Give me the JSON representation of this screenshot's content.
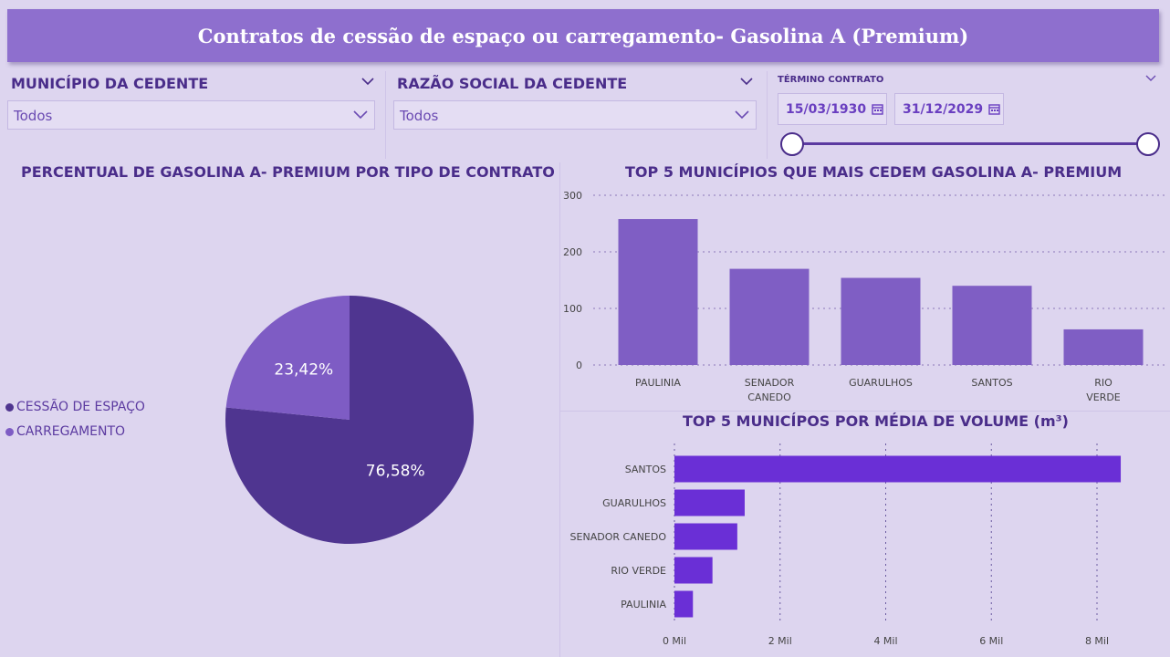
{
  "header": {
    "title": "Contratos de cessão de espaço ou carregamento- Gasolina A (Premium)"
  },
  "filters": {
    "municipio": {
      "label": "MUNICÍPIO DA CEDENTE",
      "value": "Todos"
    },
    "razao": {
      "label": "RAZÃO SOCIAL DA CEDENTE",
      "value": "Todos"
    },
    "termino": {
      "label": "TÉRMINO CONTRATO",
      "start": "15/03/1930",
      "end": "31/12/2029"
    }
  },
  "colors": {
    "accent": "#8e6fce",
    "pie_dark": "#4f3590",
    "pie_light": "#7e5cc4",
    "bar_col": "#7f5ec4",
    "bar_hbar": "#6a2fd6",
    "text": "#4a2d8a"
  },
  "icons": {
    "dropdown": "chevron-down-icon",
    "calendar": "calendar-icon"
  },
  "chart_data": [
    {
      "type": "pie",
      "title": "PERCENTUAL DE GASOLINA A- PREMIUM POR TIPO DE CONTRATO",
      "slices": [
        {
          "name": "CESSÃO DE ESPAÇO",
          "value": 76.58,
          "label": "76,58%"
        },
        {
          "name": "CARREGAMENTO",
          "value": 23.42,
          "label": "23,42%"
        }
      ],
      "legend": "left"
    },
    {
      "type": "bar",
      "title": "TOP 5 MUNICÍPIOS QUE MAIS CEDEM GASOLINA A- PREMIUM",
      "categories": [
        "PAULINIA",
        "SENADOR CANEDO",
        "GUARULHOS",
        "SANTOS",
        "RIO VERDE"
      ],
      "values": [
        258,
        170,
        154,
        140,
        63
      ],
      "ylim": [
        0,
        300
      ],
      "yticks": [
        "0",
        "100",
        "200",
        "300"
      ],
      "grid": true
    },
    {
      "type": "bar",
      "orientation": "horizontal",
      "title": "TOP 5 MUNICÍPOS POR MÉDIA DE VOLUME (m³)",
      "categories": [
        "SANTOS",
        "GUARULHOS",
        "SENADOR CANEDO",
        "RIO VERDE",
        "PAULINIA"
      ],
      "values": [
        8450,
        1330,
        1190,
        720,
        350
      ],
      "xlim": [
        0,
        8000
      ],
      "xticks": [
        {
          "value": 0,
          "label": "0 Mil"
        },
        {
          "value": 2000,
          "label": "2 Mil"
        },
        {
          "value": 4000,
          "label": "4 Mil"
        },
        {
          "value": 6000,
          "label": "6 Mil"
        },
        {
          "value": 8000,
          "label": "8 Mil"
        }
      ],
      "grid": true
    }
  ]
}
